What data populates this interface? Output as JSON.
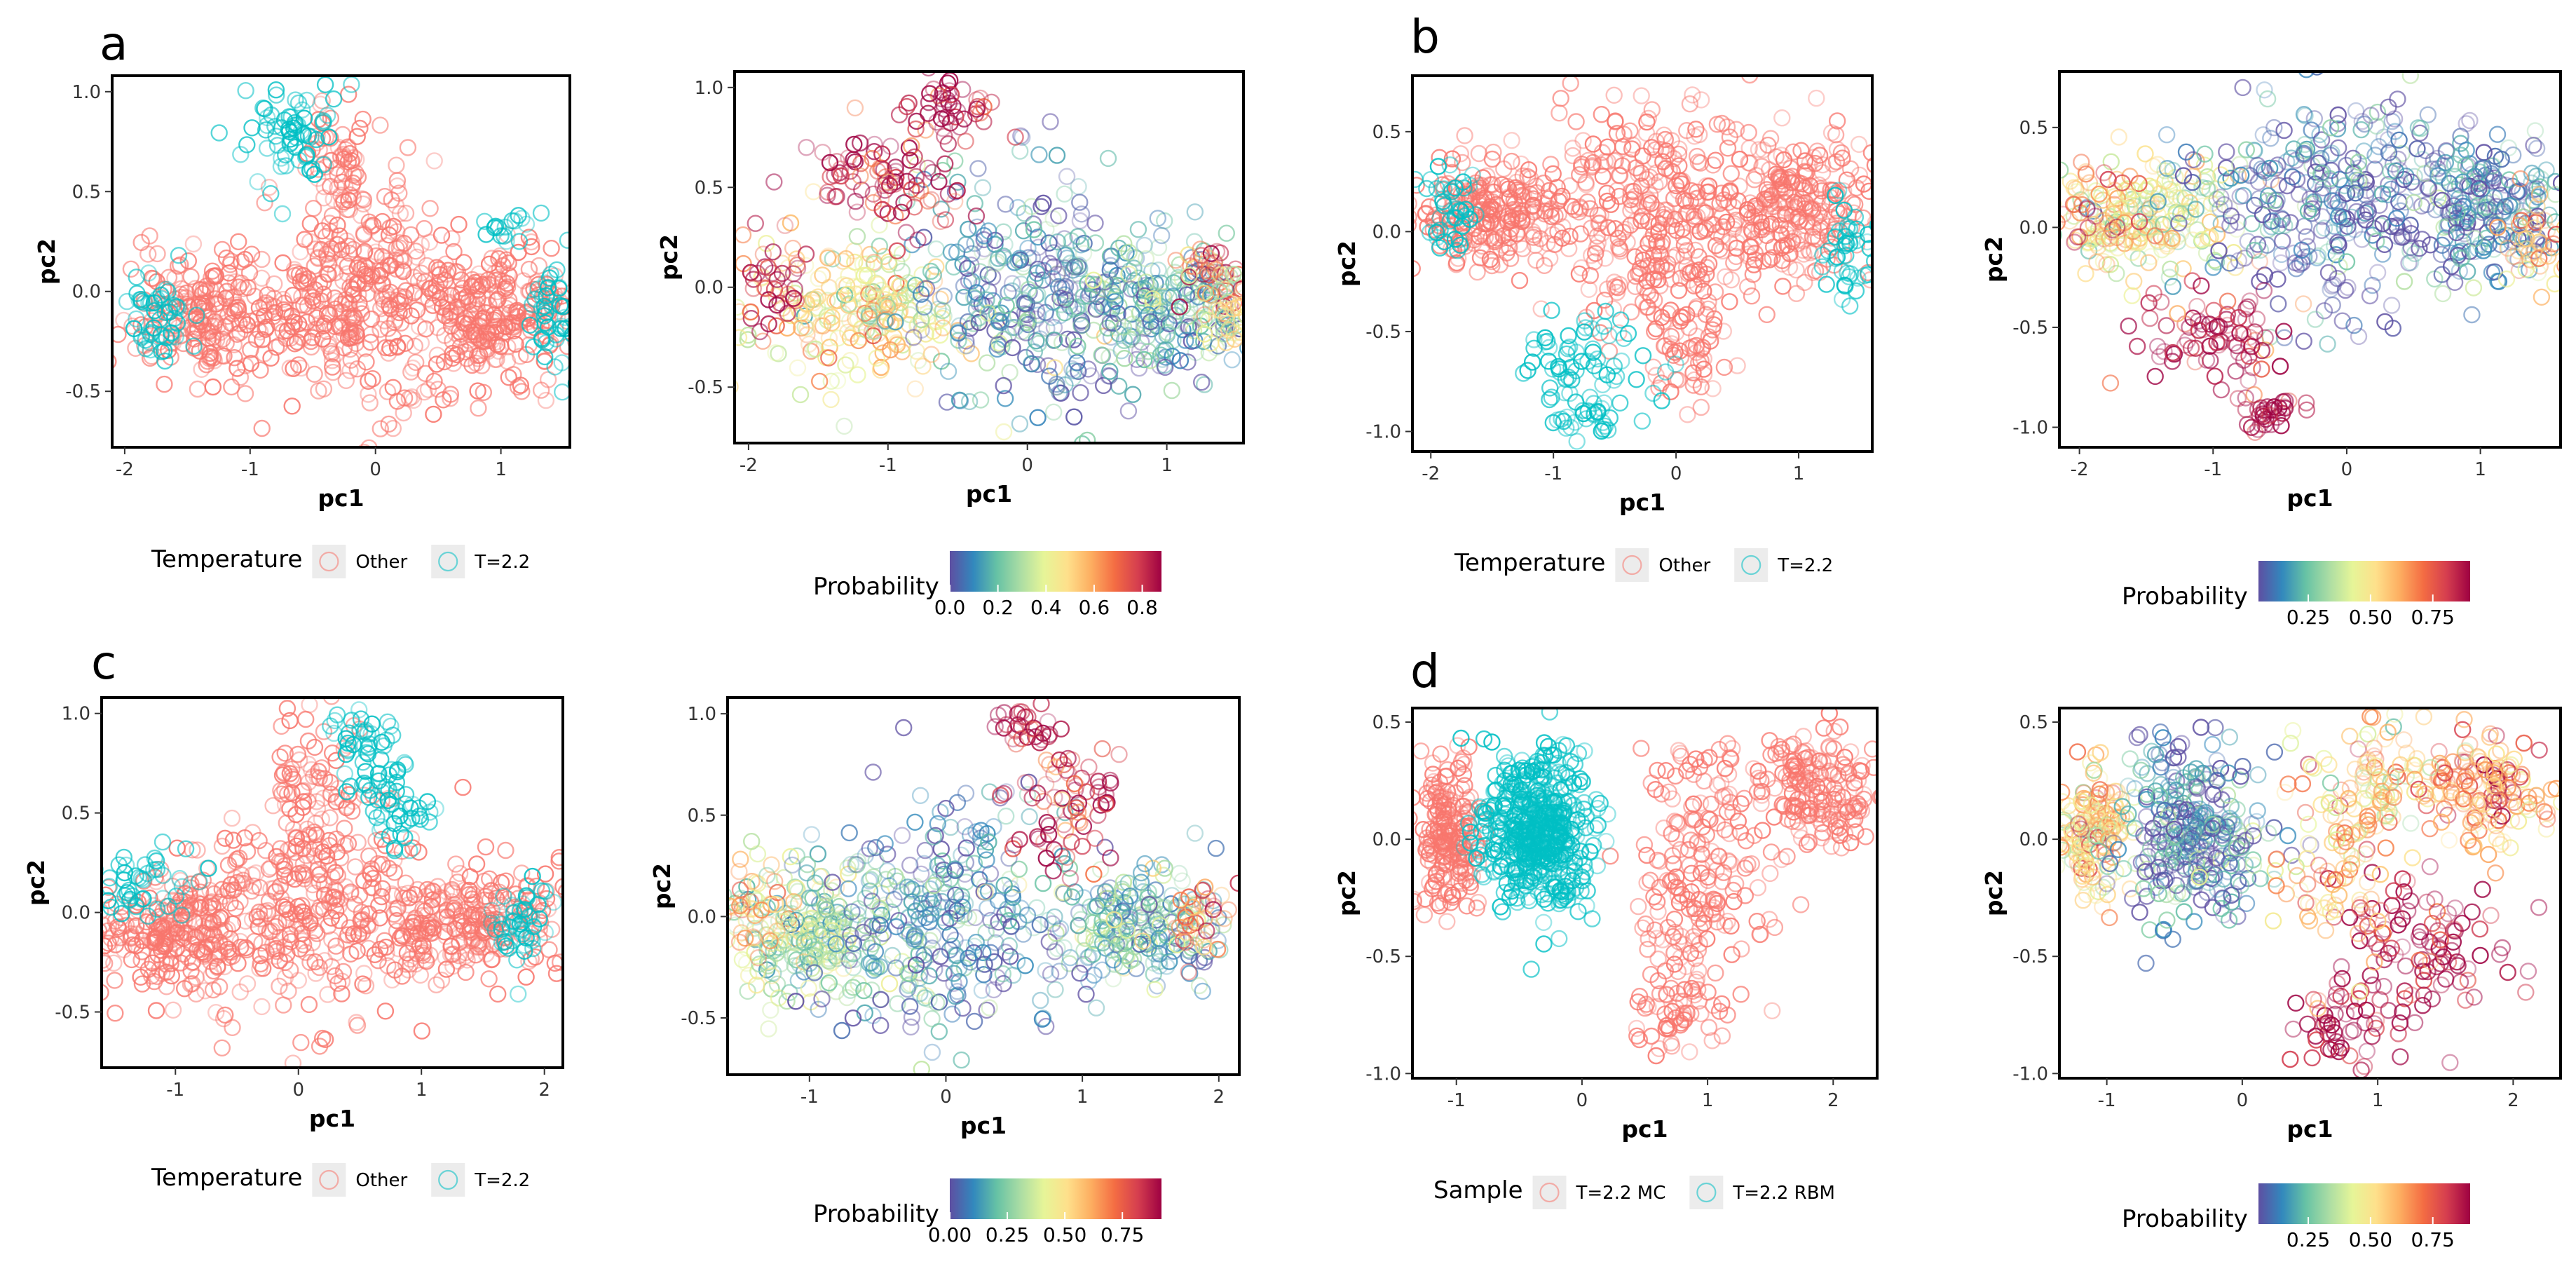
{
  "figure": {
    "panel_letters": [
      "a",
      "b",
      "c",
      "d"
    ]
  },
  "chart_data": [
    {
      "id": "a-temperature",
      "panel": "a",
      "type": "scatter",
      "marker": "open-circle",
      "xlabel": "pc1",
      "ylabel": "pc2",
      "xticks": [
        -2,
        -1,
        0,
        1
      ],
      "yticks": [
        -0.5,
        0.0,
        0.5,
        1.0
      ],
      "xlim": [
        -2.1,
        1.55
      ],
      "ylim": [
        -0.78,
        1.08
      ],
      "legend": {
        "title": "Temperature",
        "entries": [
          {
            "label": "Other",
            "color": "#F8766D"
          },
          {
            "label": "T=2.2",
            "color": "#00BFC4"
          }
        ]
      },
      "series": [
        {
          "name": "Other",
          "color": "#F8766D",
          "clusters": [
            {
              "cx": -1.2,
              "cy": -0.12,
              "sx": 0.42,
              "sy": 0.16,
              "n": 260
            },
            {
              "cx": 0.0,
              "cy": 0.0,
              "sx": 0.4,
              "sy": 0.3,
              "n": 320
            },
            {
              "cx": 1.0,
              "cy": -0.12,
              "sx": 0.32,
              "sy": 0.16,
              "n": 240
            },
            {
              "cx": -0.3,
              "cy": 0.62,
              "sx": 0.12,
              "sy": 0.18,
              "n": 60
            }
          ]
        },
        {
          "name": "T=2.2",
          "color": "#00BFC4",
          "clusters": [
            {
              "cx": -0.7,
              "cy": 0.82,
              "sx": 0.22,
              "sy": 0.14,
              "n": 70
            },
            {
              "cx": -1.75,
              "cy": -0.1,
              "sx": 0.15,
              "sy": 0.12,
              "n": 50
            },
            {
              "cx": 1.4,
              "cy": -0.05,
              "sx": 0.1,
              "sy": 0.15,
              "n": 45
            },
            {
              "cx": 1.0,
              "cy": 0.3,
              "sx": 0.08,
              "sy": 0.05,
              "n": 15
            }
          ]
        }
      ]
    },
    {
      "id": "a-probability",
      "panel": "a",
      "type": "scatter",
      "marker": "open-circle",
      "xlabel": "pc1",
      "ylabel": "pc2",
      "xticks": [
        -2,
        -1,
        0,
        1
      ],
      "yticks": [
        -0.5,
        0.0,
        0.5,
        1.0
      ],
      "xlim": [
        -2.1,
        1.55
      ],
      "ylim": [
        -0.78,
        1.08
      ],
      "colorbar": {
        "title": "Probability",
        "ticks": [
          "0.0",
          "0.2",
          "0.4",
          "0.6",
          "0.8"
        ],
        "range": [
          0,
          0.88
        ]
      },
      "clusters": [
        {
          "cx": -1.2,
          "cy": -0.12,
          "sx": 0.42,
          "sy": 0.16,
          "n": 220,
          "p": 0.45
        },
        {
          "cx": 0.0,
          "cy": -0.05,
          "sx": 0.4,
          "sy": 0.3,
          "n": 300,
          "p": 0.1
        },
        {
          "cx": 1.0,
          "cy": -0.12,
          "sx": 0.32,
          "sy": 0.16,
          "n": 220,
          "p": 0.15
        },
        {
          "cx": -1.0,
          "cy": 0.55,
          "sx": 0.3,
          "sy": 0.15,
          "n": 90,
          "p": 0.85
        },
        {
          "cx": -0.55,
          "cy": 0.9,
          "sx": 0.15,
          "sy": 0.08,
          "n": 40,
          "p": 0.9
        },
        {
          "cx": -1.8,
          "cy": 0.05,
          "sx": 0.15,
          "sy": 0.15,
          "n": 40,
          "p": 0.82
        },
        {
          "cx": 1.35,
          "cy": 0.05,
          "sx": 0.12,
          "sy": 0.12,
          "n": 40,
          "p": 0.75
        },
        {
          "cx": 1.45,
          "cy": -0.1,
          "sx": 0.1,
          "sy": 0.12,
          "n": 40,
          "p": 0.4
        }
      ]
    },
    {
      "id": "b-temperature",
      "panel": "b",
      "type": "scatter",
      "marker": "open-circle",
      "xlabel": "pc1",
      "ylabel": "pc2",
      "xticks": [
        -2,
        -1,
        0,
        1
      ],
      "yticks": [
        -1.0,
        -0.5,
        0.0,
        0.5
      ],
      "xlim": [
        -2.15,
        1.6
      ],
      "ylim": [
        -1.1,
        0.78
      ],
      "legend": {
        "title": "Temperature",
        "entries": [
          {
            "label": "Other",
            "color": "#F8766D"
          },
          {
            "label": "T=2.2",
            "color": "#00BFC4"
          }
        ]
      },
      "series": [
        {
          "name": "Other",
          "color": "#F8766D",
          "clusters": [
            {
              "cx": -1.5,
              "cy": 0.08,
              "sx": 0.35,
              "sy": 0.14,
              "n": 230
            },
            {
              "cx": -0.2,
              "cy": 0.1,
              "sx": 0.45,
              "sy": 0.3,
              "n": 320
            },
            {
              "cx": 1.0,
              "cy": 0.12,
              "sx": 0.3,
              "sy": 0.18,
              "n": 230
            },
            {
              "cx": 0.1,
              "cy": -0.5,
              "sx": 0.2,
              "sy": 0.2,
              "n": 70
            }
          ]
        },
        {
          "name": "T=2.2",
          "color": "#00BFC4",
          "clusters": [
            {
              "cx": -0.85,
              "cy": -0.65,
              "sx": 0.3,
              "sy": 0.12,
              "n": 60
            },
            {
              "cx": -0.7,
              "cy": -0.92,
              "sx": 0.18,
              "sy": 0.06,
              "n": 30
            },
            {
              "cx": -1.85,
              "cy": 0.1,
              "sx": 0.12,
              "sy": 0.12,
              "n": 40
            },
            {
              "cx": 1.45,
              "cy": -0.1,
              "sx": 0.1,
              "sy": 0.12,
              "n": 40
            }
          ]
        }
      ]
    },
    {
      "id": "b-probability",
      "panel": "b",
      "type": "scatter",
      "marker": "open-circle",
      "xlabel": "pc1",
      "ylabel": "pc2",
      "xticks": [
        -2,
        -1,
        0,
        1
      ],
      "yticks": [
        -1.0,
        -0.5,
        0.0,
        0.5
      ],
      "xlim": [
        -2.15,
        1.6
      ],
      "ylim": [
        -1.1,
        0.78
      ],
      "colorbar": {
        "title": "Probability",
        "ticks": [
          "0.25",
          "0.50",
          "0.75"
        ],
        "range": [
          0.05,
          0.9
        ]
      },
      "clusters": [
        {
          "cx": -1.5,
          "cy": 0.05,
          "sx": 0.35,
          "sy": 0.14,
          "n": 200,
          "p": 0.45
        },
        {
          "cx": -0.2,
          "cy": 0.15,
          "sx": 0.45,
          "sy": 0.28,
          "n": 300,
          "p": 0.1
        },
        {
          "cx": 1.0,
          "cy": 0.12,
          "sx": 0.3,
          "sy": 0.18,
          "n": 220,
          "p": 0.12
        },
        {
          "cx": -1.0,
          "cy": -0.55,
          "sx": 0.3,
          "sy": 0.12,
          "n": 80,
          "p": 0.88
        },
        {
          "cx": -0.6,
          "cy": -0.93,
          "sx": 0.15,
          "sy": 0.05,
          "n": 35,
          "p": 0.92
        },
        {
          "cx": -1.85,
          "cy": 0.05,
          "sx": 0.15,
          "sy": 0.12,
          "n": 40,
          "p": 0.7
        },
        {
          "cx": 1.4,
          "cy": -0.05,
          "sx": 0.12,
          "sy": 0.12,
          "n": 40,
          "p": 0.6
        }
      ]
    },
    {
      "id": "c-temperature",
      "panel": "c",
      "type": "scatter",
      "marker": "open-circle",
      "xlabel": "pc1",
      "ylabel": "pc2",
      "xticks": [
        -1,
        0,
        1,
        2
      ],
      "yticks": [
        -0.5,
        0.0,
        0.5,
        1.0
      ],
      "xlim": [
        -1.6,
        2.15
      ],
      "ylim": [
        -0.78,
        1.08
      ],
      "legend": {
        "title": "Temperature",
        "entries": [
          {
            "label": "Other",
            "color": "#F8766D"
          },
          {
            "label": "T=2.2",
            "color": "#00BFC4"
          }
        ]
      },
      "series": [
        {
          "name": "Other",
          "color": "#F8766D",
          "clusters": [
            {
              "cx": -1.0,
              "cy": -0.1,
              "sx": 0.3,
              "sy": 0.16,
              "n": 240
            },
            {
              "cx": 0.1,
              "cy": 0.05,
              "sx": 0.45,
              "sy": 0.3,
              "n": 320
            },
            {
              "cx": 1.4,
              "cy": -0.05,
              "sx": 0.35,
              "sy": 0.14,
              "n": 240
            },
            {
              "cx": 0.1,
              "cy": 0.7,
              "sx": 0.15,
              "sy": 0.15,
              "n": 50
            }
          ]
        },
        {
          "name": "T=2.2",
          "color": "#00BFC4",
          "clusters": [
            {
              "cx": 0.55,
              "cy": 0.78,
              "sx": 0.2,
              "sy": 0.15,
              "n": 60
            },
            {
              "cx": 0.9,
              "cy": 0.5,
              "sx": 0.15,
              "sy": 0.1,
              "n": 30
            },
            {
              "cx": -1.3,
              "cy": 0.15,
              "sx": 0.2,
              "sy": 0.1,
              "n": 45
            },
            {
              "cx": 1.8,
              "cy": -0.08,
              "sx": 0.12,
              "sy": 0.12,
              "n": 45
            }
          ]
        }
      ]
    },
    {
      "id": "c-probability",
      "panel": "c",
      "type": "scatter",
      "marker": "open-circle",
      "xlabel": "pc1",
      "ylabel": "pc2",
      "xticks": [
        -1,
        0,
        1,
        2
      ],
      "yticks": [
        -0.5,
        0.0,
        0.5,
        1.0
      ],
      "xlim": [
        -1.6,
        2.15
      ],
      "ylim": [
        -0.78,
        1.08
      ],
      "colorbar": {
        "title": "Probability",
        "ticks": [
          "0.00",
          "0.25",
          "0.50",
          "0.75"
        ],
        "range": [
          0,
          0.92
        ]
      },
      "clusters": [
        {
          "cx": -1.0,
          "cy": -0.1,
          "sx": 0.3,
          "sy": 0.16,
          "n": 220,
          "p": 0.3
        },
        {
          "cx": 0.0,
          "cy": -0.05,
          "sx": 0.45,
          "sy": 0.28,
          "n": 300,
          "p": 0.1
        },
        {
          "cx": 1.4,
          "cy": -0.05,
          "sx": 0.35,
          "sy": 0.14,
          "n": 220,
          "p": 0.2
        },
        {
          "cx": 0.8,
          "cy": 0.55,
          "sx": 0.25,
          "sy": 0.15,
          "n": 70,
          "p": 0.85
        },
        {
          "cx": 0.6,
          "cy": 0.92,
          "sx": 0.12,
          "sy": 0.06,
          "n": 30,
          "p": 0.9
        },
        {
          "cx": -1.4,
          "cy": 0.05,
          "sx": 0.12,
          "sy": 0.12,
          "n": 40,
          "p": 0.6
        },
        {
          "cx": 1.9,
          "cy": 0.0,
          "sx": 0.12,
          "sy": 0.1,
          "n": 40,
          "p": 0.7
        }
      ]
    },
    {
      "id": "d-sample",
      "panel": "d",
      "type": "scatter",
      "marker": "open-circle",
      "xlabel": "pc1",
      "ylabel": "pc2",
      "xticks": [
        -1,
        0,
        1,
        2
      ],
      "yticks": [
        -1.0,
        -0.5,
        0.0,
        0.5
      ],
      "xlim": [
        -1.35,
        2.35
      ],
      "ylim": [
        -1.02,
        0.56
      ],
      "legend": {
        "title": "Sample",
        "entries": [
          {
            "label": "T=2.2 MC",
            "color": "#F8766D"
          },
          {
            "label": "T=2.2 RBM",
            "color": "#00BFC4"
          }
        ]
      },
      "series": [
        {
          "name": "T=2.2 MC",
          "color": "#F8766D",
          "clusters": [
            {
              "cx": -1.05,
              "cy": 0.02,
              "sx": 0.12,
              "sy": 0.15,
              "n": 200
            },
            {
              "cx": 1.85,
              "cy": 0.2,
              "sx": 0.25,
              "sy": 0.12,
              "n": 180
            },
            {
              "cx": 0.9,
              "cy": -0.25,
              "sx": 0.3,
              "sy": 0.25,
              "n": 150
            },
            {
              "cx": 0.8,
              "cy": -0.75,
              "sx": 0.2,
              "sy": 0.1,
              "n": 50
            },
            {
              "cx": 1.0,
              "cy": 0.2,
              "sx": 0.2,
              "sy": 0.15,
              "n": 40
            }
          ]
        },
        {
          "name": "T=2.2 RBM",
          "color": "#00BFC4",
          "clusters": [
            {
              "cx": -0.35,
              "cy": 0.02,
              "sx": 0.22,
              "sy": 0.16,
              "n": 520
            }
          ]
        }
      ]
    },
    {
      "id": "d-probability",
      "panel": "d",
      "type": "scatter",
      "marker": "open-circle",
      "xlabel": "pc1",
      "ylabel": "pc2",
      "xticks": [
        -1,
        0,
        1,
        2
      ],
      "yticks": [
        -1.0,
        -0.5,
        0.0,
        0.5
      ],
      "xlim": [
        -1.35,
        2.35
      ],
      "ylim": [
        -1.02,
        0.56
      ],
      "colorbar": {
        "title": "Probability",
        "ticks": [
          "0.25",
          "0.50",
          "0.75"
        ],
        "range": [
          0.05,
          0.9
        ]
      },
      "clusters": [
        {
          "cx": -1.1,
          "cy": 0.02,
          "sx": 0.12,
          "sy": 0.15,
          "n": 160,
          "p": 0.55
        },
        {
          "cx": -0.35,
          "cy": 0.02,
          "sx": 0.25,
          "sy": 0.18,
          "n": 320,
          "p": 0.12
        },
        {
          "cx": 1.8,
          "cy": 0.2,
          "sx": 0.25,
          "sy": 0.12,
          "n": 150,
          "p": 0.65
        },
        {
          "cx": 1.0,
          "cy": 0.25,
          "sx": 0.3,
          "sy": 0.12,
          "n": 90,
          "p": 0.55
        },
        {
          "cx": 1.3,
          "cy": -0.45,
          "sx": 0.3,
          "sy": 0.15,
          "n": 100,
          "p": 0.9
        },
        {
          "cx": 0.7,
          "cy": -0.8,
          "sx": 0.2,
          "sy": 0.08,
          "n": 50,
          "p": 0.92
        },
        {
          "cx": 0.7,
          "cy": -0.1,
          "sx": 0.25,
          "sy": 0.2,
          "n": 90,
          "p": 0.6
        }
      ]
    }
  ]
}
